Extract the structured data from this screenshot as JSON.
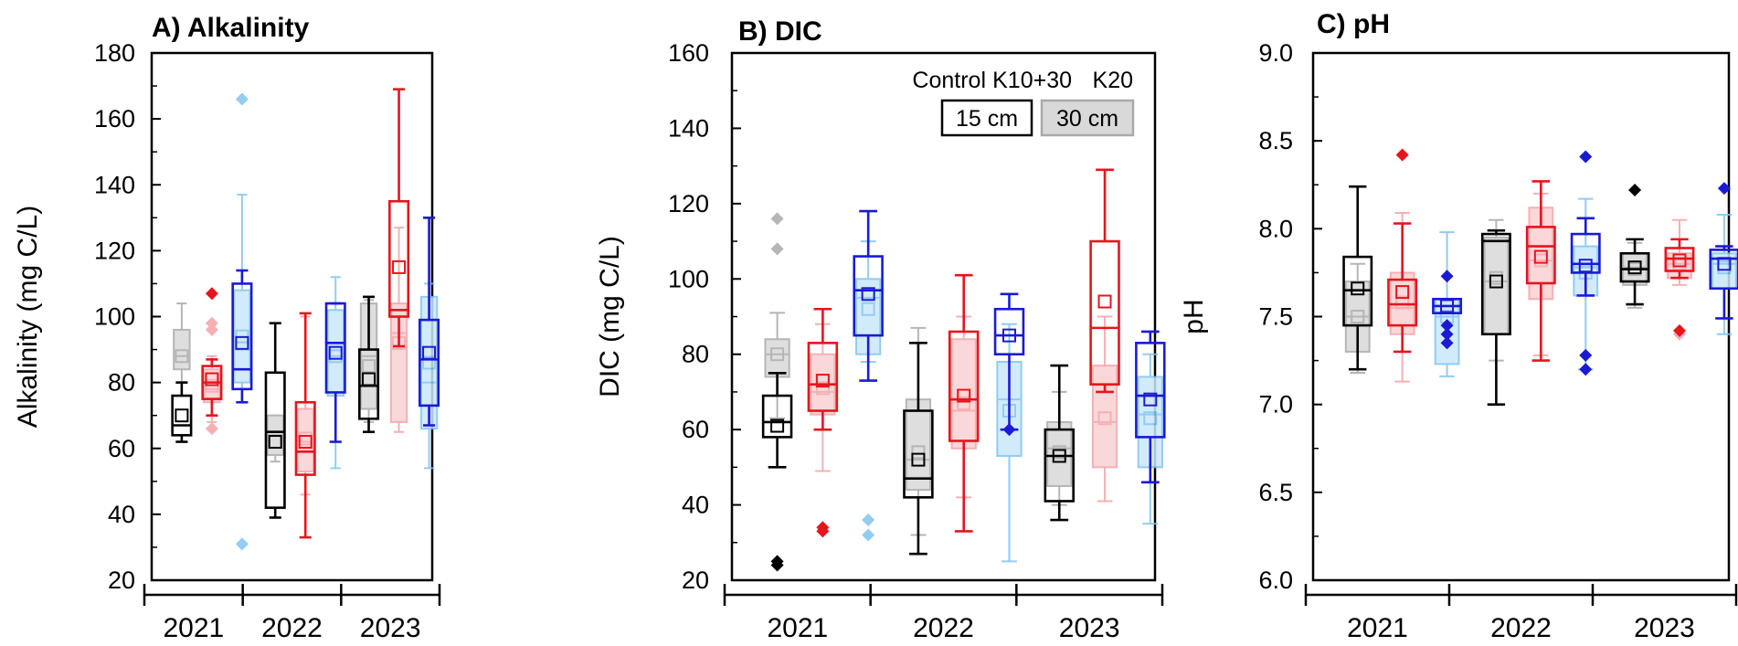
{
  "colors": {
    "Control": "#000000",
    "K10+30": "#e8141c",
    "K20": "#1a1ad6",
    "Control_30": "#a9a9a9",
    "K10+30_30": "#f4a3a8",
    "K20_30": "#7fc4f0",
    "Control_30_fill": "#d9d9d9",
    "K10+30_30_fill": "#fad1d3",
    "K20_30_fill": "#cbe8fa"
  },
  "legend": {
    "series": [
      "Control",
      "K10+30",
      "K20"
    ],
    "depths": [
      "15 cm",
      "30 cm"
    ]
  },
  "chart_data": [
    {
      "type": "box",
      "title": "A) Alkalinity",
      "ylabel": "Alkalinity (mg C/L)",
      "ylim": [
        20,
        180
      ],
      "yticks": [
        20,
        40,
        60,
        80,
        100,
        120,
        140,
        160,
        180
      ],
      "categories": [
        "2021",
        "2022",
        "2023"
      ],
      "series": [
        {
          "name": "Control",
          "depth": "15 cm",
          "year": "2021",
          "min": 62,
          "q1": 64,
          "median": 67,
          "q3": 76,
          "max": 80,
          "mean": 70,
          "outliers": []
        },
        {
          "name": "Control",
          "depth": "30 cm",
          "year": "2021",
          "min": 76,
          "q1": 84,
          "median": 88,
          "q3": 96,
          "max": 104,
          "mean": 88,
          "outliers": []
        },
        {
          "name": "K10+30",
          "depth": "15 cm",
          "year": "2021",
          "min": 70,
          "q1": 75,
          "median": 80,
          "q3": 85,
          "max": 87,
          "mean": 81,
          "outliers": [
            107
          ]
        },
        {
          "name": "K10+30",
          "depth": "30 cm",
          "year": "2021",
          "min": 68,
          "q1": 74,
          "median": 78,
          "q3": 84,
          "max": 88,
          "mean": 79,
          "outliers": [
            66,
            96,
            98
          ]
        },
        {
          "name": "K20",
          "depth": "15 cm",
          "year": "2021",
          "min": 74,
          "q1": 78,
          "median": 84,
          "q3": 110,
          "max": 114,
          "mean": 92,
          "outliers": []
        },
        {
          "name": "K20",
          "depth": "30 cm",
          "year": "2021",
          "min": 74,
          "q1": 80,
          "median": 90,
          "q3": 108,
          "max": 137,
          "mean": 94,
          "outliers": [
            166,
            31
          ]
        },
        {
          "name": "Control",
          "depth": "15 cm",
          "year": "2022",
          "min": 39,
          "q1": 42,
          "median": 65,
          "q3": 83,
          "max": 98,
          "mean": 62,
          "outliers": []
        },
        {
          "name": "Control",
          "depth": "30 cm",
          "year": "2022",
          "min": 56,
          "q1": 58,
          "median": 64,
          "q3": 70,
          "max": 70,
          "mean": 62,
          "outliers": []
        },
        {
          "name": "K10+30",
          "depth": "15 cm",
          "year": "2022",
          "min": 33,
          "q1": 52,
          "median": 59,
          "q3": 74,
          "max": 101,
          "mean": 62,
          "outliers": []
        },
        {
          "name": "K10+30",
          "depth": "30 cm",
          "year": "2022",
          "min": 46,
          "q1": 53,
          "median": 62,
          "q3": 72,
          "max": 100,
          "mean": 63,
          "outliers": []
        },
        {
          "name": "K20",
          "depth": "15 cm",
          "year": "2022",
          "min": 62,
          "q1": 77,
          "median": 92,
          "q3": 104,
          "max": 104,
          "mean": 89,
          "outliers": []
        },
        {
          "name": "K20",
          "depth": "30 cm",
          "year": "2022",
          "min": 54,
          "q1": 76,
          "median": 88,
          "q3": 102,
          "max": 112,
          "mean": 88,
          "outliers": []
        },
        {
          "name": "Control",
          "depth": "15 cm",
          "year": "2023",
          "min": 65,
          "q1": 69,
          "median": 79,
          "q3": 90,
          "max": 106,
          "mean": 81,
          "outliers": []
        },
        {
          "name": "Control",
          "depth": "30 cm",
          "year": "2023",
          "min": 68,
          "q1": 72,
          "median": 88,
          "q3": 104,
          "max": 105,
          "mean": 85,
          "outliers": []
        },
        {
          "name": "K10+30",
          "depth": "15 cm",
          "year": "2023",
          "min": 91,
          "q1": 100,
          "median": 102,
          "q3": 135,
          "max": 169,
          "mean": 115,
          "outliers": []
        },
        {
          "name": "K10+30",
          "depth": "30 cm",
          "year": "2023",
          "min": 65,
          "q1": 68,
          "median": 95,
          "q3": 104,
          "max": 127,
          "mean": 92,
          "outliers": []
        },
        {
          "name": "K20",
          "depth": "15 cm",
          "year": "2023",
          "min": 67,
          "q1": 73,
          "median": 87,
          "q3": 99,
          "max": 130,
          "mean": 89,
          "outliers": []
        },
        {
          "name": "K20",
          "depth": "30 cm",
          "year": "2023",
          "min": 54,
          "q1": 66,
          "median": 80,
          "q3": 106,
          "max": 110,
          "mean": 86,
          "outliers": []
        }
      ]
    },
    {
      "type": "box",
      "title": "B) DIC",
      "ylabel": "DIC (mg C/L)",
      "ylim": [
        20,
        160
      ],
      "yticks": [
        20,
        40,
        60,
        80,
        100,
        120,
        140,
        160
      ],
      "categories": [
        "2021",
        "2022",
        "2023"
      ],
      "series": [
        {
          "name": "Control",
          "depth": "15 cm",
          "year": "2021",
          "min": 50,
          "q1": 58,
          "median": 62,
          "q3": 69,
          "max": 75,
          "mean": 61,
          "outliers": [
            24,
            25
          ]
        },
        {
          "name": "Control",
          "depth": "30 cm",
          "year": "2021",
          "min": 63,
          "q1": 74,
          "median": 80,
          "q3": 84,
          "max": 91,
          "mean": 80,
          "outliers": [
            108,
            116
          ]
        },
        {
          "name": "K10+30",
          "depth": "15 cm",
          "year": "2021",
          "min": 60,
          "q1": 65,
          "median": 72,
          "q3": 83,
          "max": 92,
          "mean": 73,
          "outliers": [
            33,
            34
          ]
        },
        {
          "name": "K10+30",
          "depth": "30 cm",
          "year": "2021",
          "min": 49,
          "q1": 64,
          "median": 70,
          "q3": 80,
          "max": 88,
          "mean": 71,
          "outliers": []
        },
        {
          "name": "K20",
          "depth": "15 cm",
          "year": "2021",
          "min": 73,
          "q1": 85,
          "median": 97,
          "q3": 106,
          "max": 118,
          "mean": 96,
          "outliers": []
        },
        {
          "name": "K20",
          "depth": "30 cm",
          "year": "2021",
          "min": 78,
          "q1": 80,
          "median": 95,
          "q3": 100,
          "max": 110,
          "mean": 92,
          "outliers": [
            32,
            36
          ]
        },
        {
          "name": "Control",
          "depth": "15 cm",
          "year": "2022",
          "min": 27,
          "q1": 42,
          "median": 47,
          "q3": 65,
          "max": 83,
          "mean": 52,
          "outliers": []
        },
        {
          "name": "Control",
          "depth": "30 cm",
          "year": "2022",
          "min": 32,
          "q1": 44,
          "median": 52,
          "q3": 68,
          "max": 87,
          "mean": 54,
          "outliers": []
        },
        {
          "name": "K10+30",
          "depth": "15 cm",
          "year": "2022",
          "min": 33,
          "q1": 57,
          "median": 68,
          "q3": 86,
          "max": 101,
          "mean": 69,
          "outliers": []
        },
        {
          "name": "K10+30",
          "depth": "30 cm",
          "year": "2022",
          "min": 42,
          "q1": 55,
          "median": 65,
          "q3": 84,
          "max": 90,
          "mean": 67,
          "outliers": []
        },
        {
          "name": "K20",
          "depth": "15 cm",
          "year": "2022",
          "min": 60,
          "q1": 80,
          "median": 85,
          "q3": 92,
          "max": 96,
          "mean": 85,
          "outliers": [
            60
          ]
        },
        {
          "name": "K20",
          "depth": "30 cm",
          "year": "2022",
          "min": 25,
          "q1": 53,
          "median": 68,
          "q3": 78,
          "max": 88,
          "mean": 65,
          "outliers": []
        },
        {
          "name": "Control",
          "depth": "15 cm",
          "year": "2023",
          "min": 36,
          "q1": 41,
          "median": 53,
          "q3": 60,
          "max": 77,
          "mean": 53,
          "outliers": []
        },
        {
          "name": "Control",
          "depth": "30 cm",
          "year": "2023",
          "min": 40,
          "q1": 45,
          "median": 55,
          "q3": 62,
          "max": 70,
          "mean": 54,
          "outliers": []
        },
        {
          "name": "K10+30",
          "depth": "15 cm",
          "year": "2023",
          "min": 70,
          "q1": 72,
          "median": 87,
          "q3": 110,
          "max": 129,
          "mean": 94,
          "outliers": []
        },
        {
          "name": "K10+30",
          "depth": "30 cm",
          "year": "2023",
          "min": 41,
          "q1": 50,
          "median": 62,
          "q3": 77,
          "max": 90,
          "mean": 63,
          "outliers": []
        },
        {
          "name": "K20",
          "depth": "15 cm",
          "year": "2023",
          "min": 46,
          "q1": 58,
          "median": 69,
          "q3": 83,
          "max": 86,
          "mean": 68,
          "outliers": []
        },
        {
          "name": "K20",
          "depth": "30 cm",
          "year": "2023",
          "min": 35,
          "q1": 50,
          "median": 64,
          "q3": 74,
          "max": 80,
          "mean": 63,
          "outliers": []
        }
      ]
    },
    {
      "type": "box",
      "title": "C) pH",
      "ylabel": "pH",
      "ylim": [
        6.0,
        9.0
      ],
      "yticks": [
        "6.0",
        "6.5",
        "7.0",
        "7.5",
        "8.0",
        "8.5",
        "9.0"
      ],
      "categories": [
        "2021",
        "2022",
        "2023"
      ],
      "series": [
        {
          "name": "Control",
          "depth": "15 cm",
          "year": "2021",
          "min": 7.2,
          "q1": 7.45,
          "median": 7.65,
          "q3": 7.84,
          "max": 8.24,
          "mean": 7.66,
          "outliers": []
        },
        {
          "name": "Control",
          "depth": "30 cm",
          "year": "2021",
          "min": 7.18,
          "q1": 7.3,
          "median": 7.5,
          "q3": 7.7,
          "max": 7.8,
          "mean": 7.5,
          "outliers": []
        },
        {
          "name": "K10+30",
          "depth": "15 cm",
          "year": "2021",
          "min": 7.3,
          "q1": 7.45,
          "median": 7.57,
          "q3": 7.71,
          "max": 8.03,
          "mean": 7.64,
          "outliers": [
            8.42
          ]
        },
        {
          "name": "K10+30",
          "depth": "30 cm",
          "year": "2021",
          "min": 7.13,
          "q1": 7.4,
          "median": 7.55,
          "q3": 7.75,
          "max": 8.09,
          "mean": 7.58,
          "outliers": []
        },
        {
          "name": "K20",
          "depth": "15 cm",
          "year": "2021",
          "min": 7.52,
          "q1": 7.52,
          "median": 7.56,
          "q3": 7.6,
          "max": 7.6,
          "mean": 7.56,
          "outliers": [
            7.73,
            7.45,
            7.4,
            7.35
          ]
        },
        {
          "name": "K20",
          "depth": "30 cm",
          "year": "2021",
          "min": 7.16,
          "q1": 7.23,
          "median": 7.5,
          "q3": 7.6,
          "max": 7.98,
          "mean": 7.5,
          "outliers": []
        },
        {
          "name": "Control",
          "depth": "15 cm",
          "year": "2022",
          "min": 7.0,
          "q1": 7.4,
          "median": 7.93,
          "q3": 7.97,
          "max": 7.99,
          "mean": 7.7,
          "outliers": []
        },
        {
          "name": "Control",
          "depth": "30 cm",
          "year": "2022",
          "min": 7.25,
          "q1": 7.4,
          "median": 7.7,
          "q3": 7.95,
          "max": 8.05,
          "mean": 7.72,
          "outliers": []
        },
        {
          "name": "K10+30",
          "depth": "15 cm",
          "year": "2022",
          "min": 7.25,
          "q1": 7.69,
          "median": 7.9,
          "q3": 8.01,
          "max": 8.27,
          "mean": 7.84,
          "outliers": []
        },
        {
          "name": "K10+30",
          "depth": "30 cm",
          "year": "2022",
          "min": 7.28,
          "q1": 7.6,
          "median": 7.82,
          "q3": 8.12,
          "max": 8.2,
          "mean": 7.82,
          "outliers": []
        },
        {
          "name": "K20",
          "depth": "15 cm",
          "year": "2022",
          "min": 7.62,
          "q1": 7.75,
          "median": 7.8,
          "q3": 7.97,
          "max": 8.06,
          "mean": 7.79,
          "outliers": [
            8.41,
            7.28,
            7.2
          ]
        },
        {
          "name": "K20",
          "depth": "30 cm",
          "year": "2022",
          "min": 7.2,
          "q1": 7.62,
          "median": 7.78,
          "q3": 7.9,
          "max": 8.17,
          "mean": 7.75,
          "outliers": []
        },
        {
          "name": "Control",
          "depth": "15 cm",
          "year": "2023",
          "min": 7.57,
          "q1": 7.7,
          "median": 7.77,
          "q3": 7.86,
          "max": 7.94,
          "mean": 7.78,
          "outliers": [
            8.22
          ]
        },
        {
          "name": "Control",
          "depth": "30 cm",
          "year": "2023",
          "min": 7.55,
          "q1": 7.68,
          "median": 7.78,
          "q3": 7.86,
          "max": 7.92,
          "mean": 7.77,
          "outliers": []
        },
        {
          "name": "K10+30",
          "depth": "15 cm",
          "year": "2023",
          "min": 7.72,
          "q1": 7.76,
          "median": 7.83,
          "q3": 7.89,
          "max": 7.94,
          "mean": 7.82,
          "outliers": [
            7.42
          ]
        },
        {
          "name": "K10+30",
          "depth": "30 cm",
          "year": "2023",
          "min": 7.68,
          "q1": 7.72,
          "median": 7.8,
          "q3": 7.86,
          "max": 8.05,
          "mean": 7.8,
          "outliers": [
            7.4
          ]
        },
        {
          "name": "K20",
          "depth": "15 cm",
          "year": "2023",
          "min": 7.49,
          "q1": 7.66,
          "median": 7.83,
          "q3": 7.88,
          "max": 7.9,
          "mean": 7.8,
          "outliers": [
            8.23
          ]
        },
        {
          "name": "K20",
          "depth": "30 cm",
          "year": "2023",
          "min": 7.4,
          "q1": 7.66,
          "median": 7.8,
          "q3": 7.86,
          "max": 8.08,
          "mean": 7.78,
          "outliers": []
        }
      ]
    }
  ]
}
